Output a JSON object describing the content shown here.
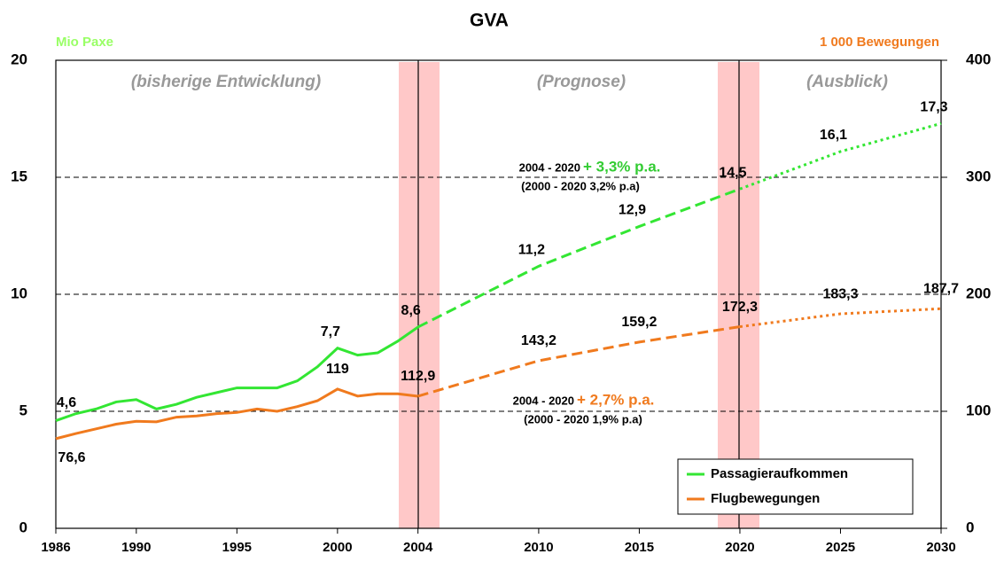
{
  "chart_data": {
    "type": "line",
    "title": "GVA",
    "y_label": "Mio Paxe",
    "y2_label": "1 000 Bewegungen",
    "x": [
      1986,
      1987,
      1988,
      1989,
      1990,
      1991,
      1992,
      1993,
      1994,
      1995,
      1996,
      1997,
      1998,
      1999,
      2000,
      2001,
      2002,
      2003,
      2004,
      2010,
      2015,
      2020,
      2025,
      2030
    ],
    "series": [
      {
        "name": "Passagieraufkommen",
        "color": "#33e633",
        "values": [
          4.6,
          4.9,
          5.1,
          5.4,
          5.5,
          5.1,
          5.3,
          5.6,
          5.8,
          6.0,
          6.0,
          6.0,
          6.3,
          6.9,
          7.7,
          7.4,
          7.5,
          8.0,
          8.6,
          11.2,
          12.9,
          14.5,
          16.1,
          17.3
        ],
        "value_labels": [
          "4,6",
          null,
          null,
          null,
          null,
          null,
          null,
          null,
          null,
          null,
          null,
          null,
          null,
          null,
          "7,7",
          null,
          null,
          null,
          "8,6",
          "11,2",
          "12,9",
          "14,5",
          "16,1",
          "17,3"
        ]
      },
      {
        "name": "Flugbewegungen",
        "color": "#f07a1e",
        "axis": "y2",
        "values": [
          76.6,
          81,
          85,
          89,
          91.5,
          91,
          95,
          96,
          98,
          99,
          102,
          100,
          104,
          109,
          119,
          113,
          115,
          115,
          112.9,
          143.2,
          159.2,
          172.3,
          183.3,
          187.7
        ],
        "value_labels": [
          "76,6",
          null,
          null,
          null,
          null,
          null,
          null,
          null,
          null,
          null,
          null,
          null,
          null,
          null,
          "119",
          null,
          null,
          null,
          "112,9",
          "143,2",
          "159,2",
          "172,3",
          "183,3",
          "187,7"
        ]
      }
    ],
    "segments": [
      {
        "style": "solid",
        "until": 2004
      },
      {
        "style": "dashed",
        "until": 2020
      },
      {
        "style": "dotted",
        "until": 2030
      }
    ],
    "xlim": [
      1986,
      2030
    ],
    "xticks": [
      1986,
      1990,
      1995,
      2000,
      2004,
      2010,
      2015,
      2020,
      2025,
      2030
    ],
    "ylim": [
      0,
      20
    ],
    "yticks": [
      0,
      5,
      10,
      15,
      20
    ],
    "y2lim": [
      0,
      400
    ],
    "y2ticks": [
      0,
      100,
      200,
      300,
      400
    ],
    "grid": true,
    "legend": "lower right",
    "annotations": [
      {
        "text": "(bisherige Entwicklung)"
      },
      {
        "text": "(Prognose)"
      },
      {
        "text": "(Ausblick)"
      },
      {
        "text": "2004 - 2020"
      },
      {
        "text": "+ 3,3% p.a."
      },
      {
        "text": "(2000 - 2020 3,2% p.a)"
      },
      {
        "text": "2004 - 2020"
      },
      {
        "text": "+ 2,7% p.a."
      },
      {
        "text": "(2000 - 2020 1,9% p.a)"
      }
    ]
  }
}
